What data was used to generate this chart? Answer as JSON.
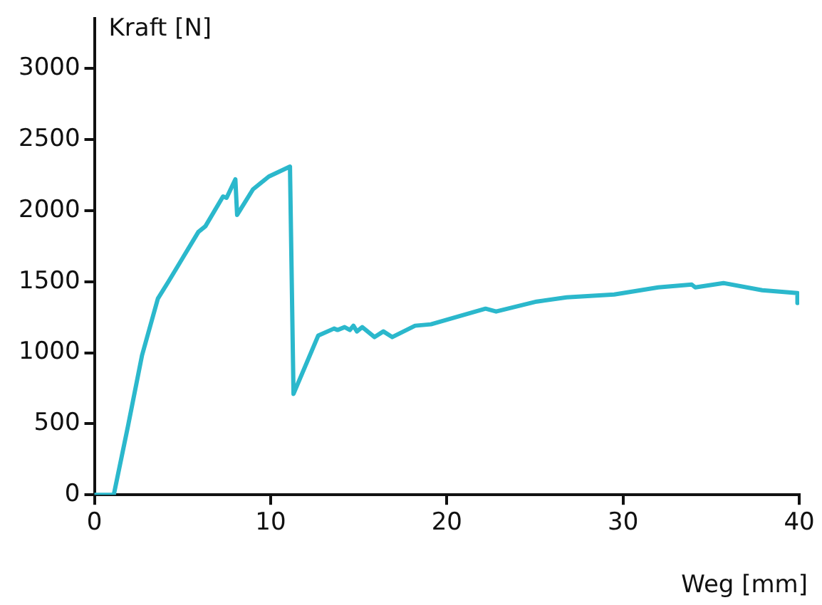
{
  "chart_data": {
    "type": "line",
    "xlabel": "Weg [mm]",
    "ylabel": "Kraft [N]",
    "x": [
      0,
      1.1,
      1.9,
      2.7,
      3.6,
      4.2,
      5.9,
      6.3,
      7.3,
      7.5,
      8.0,
      8.1,
      9.0,
      9.9,
      11.1,
      11.3,
      12.7,
      13.6,
      13.8,
      14.2,
      14.5,
      14.7,
      14.9,
      15.2,
      15.9,
      16.4,
      16.9,
      18.2,
      19.1,
      22.2,
      22.8,
      25.1,
      26.8,
      29.5,
      32.0,
      33.9,
      34.1,
      35.7,
      37.9,
      39.9,
      39.9
    ],
    "series": [
      {
        "color": "#2bb8cc",
        "values": [
          0,
          0,
          480,
          980,
          1380,
          1500,
          1850,
          1890,
          2100,
          2090,
          2220,
          1970,
          2150,
          2240,
          2310,
          710,
          1120,
          1170,
          1160,
          1180,
          1160,
          1190,
          1150,
          1180,
          1110,
          1150,
          1110,
          1190,
          1200,
          1310,
          1290,
          1360,
          1390,
          1410,
          1460,
          1480,
          1460,
          1490,
          1440,
          1420,
          1350
        ]
      }
    ],
    "xlim": [
      0,
      40
    ],
    "xticks": [
      0,
      10,
      20,
      30,
      40
    ],
    "ylim": [
      0,
      3350
    ],
    "yticks": [
      0,
      500,
      1000,
      1500,
      2000,
      2500,
      3000
    ],
    "grid": false,
    "legend": false,
    "marker": "none",
    "line_style": "solid"
  }
}
